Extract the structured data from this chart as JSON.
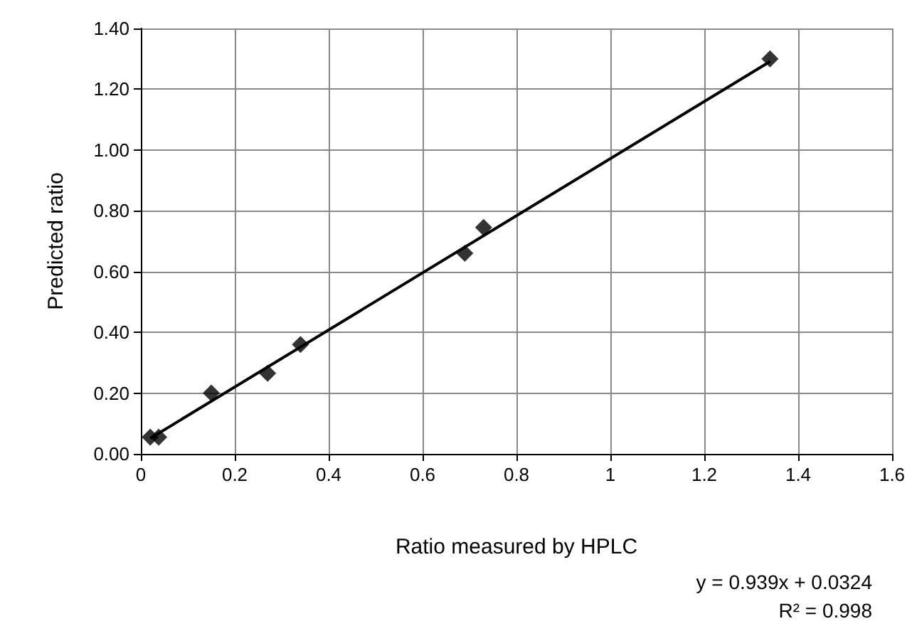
{
  "chart_data": {
    "type": "scatter",
    "xlabel": "Ratio measured by HPLC",
    "ylabel": "Predicted ratio",
    "annotations": [
      "y = 0.939x + 0.0324",
      "R² = 0.998"
    ],
    "series": [
      {
        "color": "#000000",
        "marker": "diamond",
        "x": [
          0.02,
          0.038,
          0.15,
          0.27,
          0.34,
          0.69,
          0.73,
          1.34
        ],
        "values": [
          0.055,
          0.055,
          0.2,
          0.265,
          0.36,
          0.66,
          0.745,
          1.3
        ]
      },
      {
        "type": "line",
        "color": "#000000",
        "marker": "none",
        "line_style": "solid",
        "x": [
          0.02,
          1.34
        ],
        "values": [
          0.051,
          1.291
        ]
      }
    ],
    "xlim": [
      0,
      1.6
    ],
    "xticks": [
      0,
      0.2,
      0.4,
      0.6,
      0.8,
      1,
      1.2,
      1.4,
      1.6
    ],
    "ylim": [
      0,
      1.4
    ],
    "yticks": [
      {
        "value": 0,
        "label": "0.00"
      },
      {
        "value": 0.2,
        "label": "0.20"
      },
      {
        "value": 0.4,
        "label": "0.40"
      },
      {
        "value": 0.6,
        "label": "0.60"
      },
      {
        "value": 0.8,
        "label": "0.80"
      },
      {
        "value": 1,
        "label": "1.00"
      },
      {
        "value": 1.2,
        "label": "1.20"
      },
      {
        "value": 1.4,
        "label": "1.40"
      }
    ],
    "grid": true
  }
}
